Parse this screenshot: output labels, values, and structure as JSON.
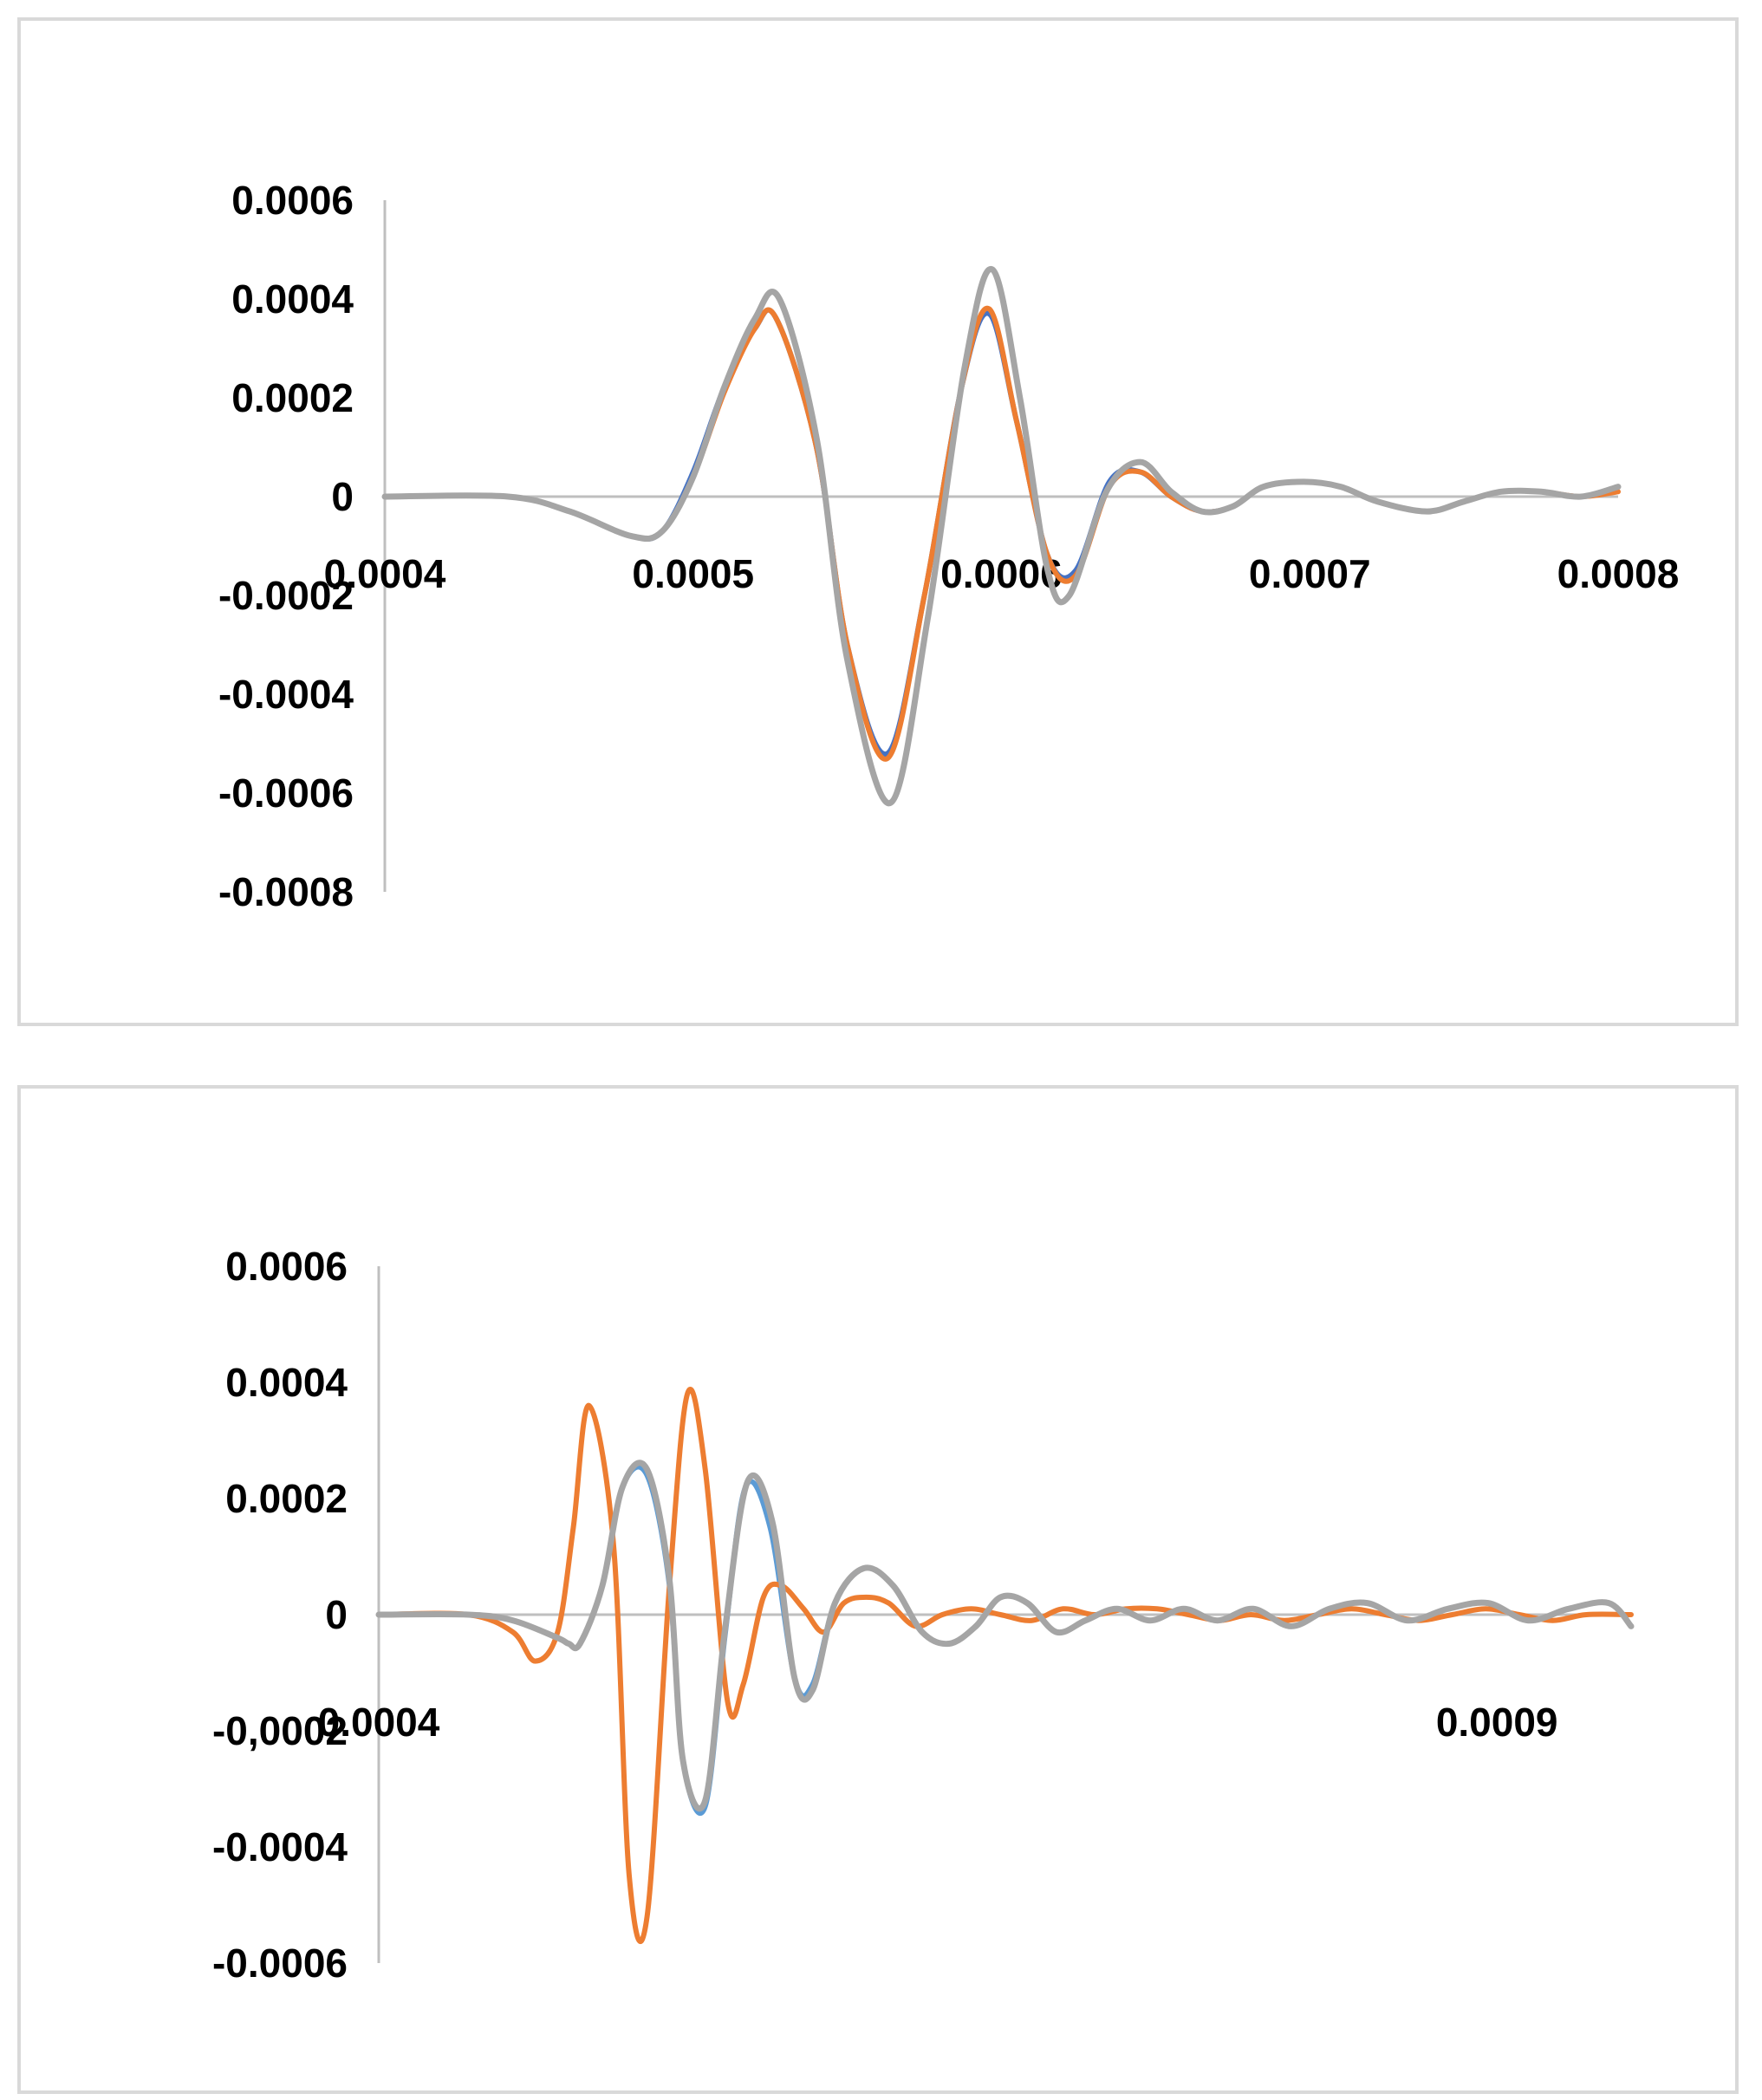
{
  "chart_data": [
    {
      "type": "line",
      "title": "",
      "xlabel": "",
      "ylabel": "",
      "xlim": [
        0.0004,
        0.0008
      ],
      "ylim": [
        -0.0008,
        0.0006
      ],
      "x_tick_values": [
        0.0004,
        0.0005,
        0.0006,
        0.0007,
        0.0008
      ],
      "x_tick_labels": [
        "0.0004",
        "0.0005",
        "0.0006",
        "0.0007",
        "0.0008"
      ],
      "y_tick_values": [
        0.0006,
        0.0004,
        0.0002,
        0,
        -0.0002,
        -0.0004,
        -0.0006,
        -0.0008
      ],
      "y_tick_labels": [
        "0.0006",
        "0.0004",
        "0.0002",
        "0",
        "-0.0002",
        "-0.0004",
        "-0.0006",
        "-0.0008"
      ],
      "grid": false,
      "legend": "none",
      "series": [
        {
          "color": "#4472c4",
          "x": [
            0.0004,
            0.00044,
            0.00046,
            0.00048,
            0.00049,
            0.0005,
            0.00051,
            0.00052,
            0.000527,
            0.00054,
            0.00055,
            0.000563,
            0.000575,
            0.000587,
            0.000596,
            0.000605,
            0.000615,
            0.000624,
            0.000635,
            0.000645,
            0.000655,
            0.000665,
            0.000675,
            0.000685,
            0.000698,
            0.00071,
            0.000722,
            0.000738,
            0.00075,
            0.000762,
            0.000775,
            0.000788,
            0.0008
          ],
          "y": [
            0,
            0,
            -3e-05,
            -8e-05,
            -7e-05,
            5e-05,
            0.00022,
            0.00034,
            0.00036,
            0.0001,
            -0.0003,
            -0.00052,
            -0.0002,
            0.00022,
            0.00037,
            0.00015,
            -0.00012,
            -0.00015,
            3e-05,
            5e-05,
            0,
            -3e-05,
            -2e-05,
            2e-05,
            3e-05,
            2e-05,
            -1e-05,
            -3e-05,
            -1e-05,
            1e-05,
            1e-05,
            0,
            2e-05
          ]
        },
        {
          "color": "#ed7d31",
          "x": [
            0.0004,
            0.00044,
            0.00046,
            0.00048,
            0.00049,
            0.0005,
            0.00051,
            0.00052,
            0.000527,
            0.00054,
            0.00055,
            0.000563,
            0.000575,
            0.000587,
            0.000596,
            0.000605,
            0.000615,
            0.000624,
            0.000635,
            0.000645,
            0.000655,
            0.000665,
            0.000675,
            0.000685,
            0.000698,
            0.00071,
            0.000722,
            0.000738,
            0.00075,
            0.000762,
            0.000775,
            0.000788,
            0.0008
          ],
          "y": [
            0,
            0,
            -3e-05,
            -8e-05,
            -7e-05,
            4e-05,
            0.00021,
            0.00034,
            0.00036,
            0.0001,
            -0.0003,
            -0.00053,
            -0.0002,
            0.00022,
            0.00038,
            0.00015,
            -0.00012,
            -0.00016,
            2e-05,
            5e-05,
            0,
            -3e-05,
            -2e-05,
            2e-05,
            3e-05,
            2e-05,
            -1e-05,
            -3e-05,
            -1e-05,
            1e-05,
            1e-05,
            0,
            1e-05
          ]
        },
        {
          "color": "#a5a5a5",
          "x": [
            0.0004,
            0.00044,
            0.00046,
            0.00048,
            0.00049,
            0.0005,
            0.00051,
            0.00052,
            0.000528,
            0.00054,
            0.00055,
            0.000564,
            0.000576,
            0.000588,
            0.000597,
            0.000606,
            0.000615,
            0.000622,
            0.000634,
            0.000645,
            0.000655,
            0.000665,
            0.000675,
            0.000685,
            0.000698,
            0.00071,
            0.000722,
            0.000738,
            0.00075,
            0.000762,
            0.000775,
            0.000788,
            0.0008
          ],
          "y": [
            0,
            0,
            -3e-05,
            -8e-05,
            -7e-05,
            4e-05,
            0.00022,
            0.00036,
            0.0004,
            0.00012,
            -0.00033,
            -0.00062,
            -0.00025,
            0.00026,
            0.00046,
            0.0002,
            -0.00015,
            -0.0002,
            1e-05,
            7e-05,
            1e-05,
            -3e-05,
            -2e-05,
            2e-05,
            3e-05,
            2e-05,
            -1e-05,
            -3e-05,
            -1e-05,
            1e-05,
            1e-05,
            0,
            2e-05
          ]
        }
      ]
    },
    {
      "type": "line",
      "title": "",
      "xlabel": "",
      "ylabel": "",
      "xlim": [
        0.0004,
        0.00096
      ],
      "ylim": [
        -0.0006,
        0.0006
      ],
      "x_tick_values": [
        0.0004,
        0.0009
      ],
      "x_tick_labels": [
        "0.0004",
        "0.0009"
      ],
      "y_tick_values": [
        0.0006,
        0.0004,
        0.0002,
        0,
        -0.0002,
        -0.0004,
        -0.0006
      ],
      "y_tick_labels": [
        "0.0006",
        "0.0004",
        "0.0002",
        "0",
        "-0,0002",
        "-0.0004",
        "-0.0006"
      ],
      "grid": false,
      "legend": "none",
      "series": [
        {
          "color": "#5b9bd5",
          "x": [
            0.0004,
            0.00044,
            0.00046,
            0.00048,
            0.000485,
            0.00049,
            0.0005,
            0.000509,
            0.00052,
            0.00053,
            0.000536,
            0.000546,
            0.000555,
            0.000564,
            0.000575,
            0.000586,
            0.000594,
            0.000604,
            0.000617,
            0.00063,
            0.000643,
            0.000655,
            0.000667,
            0.000678,
            0.00069,
            0.000703,
            0.000716,
            0.00073,
            0.000745,
            0.00076,
            0.000775,
            0.000791,
            0.000808,
            0.000825,
            0.000842,
            0.00086,
            0.000878,
            0.000896,
            0.000914,
            0.000932,
            0.00095,
            0.00096
          ],
          "y": [
            0,
            0,
            -1e-05,
            -4e-05,
            -5e-05,
            -5e-05,
            5e-05,
            0.00022,
            0.00024,
            5e-05,
            -0.00025,
            -0.00033,
            -3e-05,
            0.00022,
            0.00015,
            -0.00011,
            -0.00012,
            2e-05,
            8e-05,
            5e-05,
            -3e-05,
            -5e-05,
            -2e-05,
            3e-05,
            2e-05,
            -3e-05,
            -1e-05,
            1e-05,
            -1e-05,
            1e-05,
            -1e-05,
            1e-05,
            -2e-05,
            1e-05,
            2e-05,
            -1e-05,
            1e-05,
            2e-05,
            -1e-05,
            1e-05,
            2e-05,
            -2e-05
          ]
        },
        {
          "color": "#ed7d31",
          "x": [
            0.0004,
            0.00044,
            0.00046,
            0.00047,
            0.00048,
            0.000487,
            0.000494,
            0.000505,
            0.000512,
            0.00052,
            0.00053,
            0.000538,
            0.000546,
            0.000556,
            0.000563,
            0.000572,
            0.00058,
            0.00059,
            0.000599,
            0.000608,
            0.000618,
            0.000628,
            0.00064,
            0.000652,
            0.000665,
            0.000678,
            0.000692,
            0.000706,
            0.00072,
            0.000734,
            0.000748,
            0.000762,
            0.000776,
            0.00079,
            0.000805,
            0.00082,
            0.000835,
            0.00085,
            0.000865,
            0.00088,
            0.000895,
            0.00091,
            0.000925,
            0.00094,
            0.00096
          ],
          "y": [
            0,
            0,
            -3e-05,
            -8e-05,
            -3e-05,
            0.00015,
            0.00036,
            0.00012,
            -0.00045,
            -0.00052,
            5e-05,
            0.00038,
            0.00025,
            -0.00015,
            -0.00012,
            3e-05,
            5e-05,
            1e-05,
            -3e-05,
            2e-05,
            3e-05,
            2e-05,
            -2e-05,
            0,
            1e-05,
            0,
            -1e-05,
            1e-05,
            0,
            1e-05,
            1e-05,
            0,
            -1e-05,
            0,
            -1e-05,
            0,
            1e-05,
            0,
            -1e-05,
            0,
            1e-05,
            0,
            -1e-05,
            0,
            0
          ]
        },
        {
          "color": "#a5a5a5",
          "x": [
            0.0004,
            0.00044,
            0.00046,
            0.00048,
            0.000485,
            0.00049,
            0.0005,
            0.000509,
            0.00052,
            0.00053,
            0.000536,
            0.000546,
            0.000555,
            0.000565,
            0.000576,
            0.000586,
            0.000594,
            0.000604,
            0.000617,
            0.00063,
            0.000643,
            0.000655,
            0.000667,
            0.000678,
            0.00069,
            0.000703,
            0.000716,
            0.00073,
            0.000745,
            0.00076,
            0.000775,
            0.000791,
            0.000808,
            0.000825,
            0.000842,
            0.00086,
            0.000878,
            0.000896,
            0.000914,
            0.000932,
            0.00095,
            0.00096
          ],
          "y": [
            0,
            0,
            -1e-05,
            -4e-05,
            -5e-05,
            -5e-05,
            5e-05,
            0.00022,
            0.00025,
            6e-05,
            -0.00025,
            -0.00032,
            -2e-05,
            0.00023,
            0.00016,
            -0.00011,
            -0.00013,
            2e-05,
            8e-05,
            5e-05,
            -3e-05,
            -5e-05,
            -2e-05,
            3e-05,
            2e-05,
            -3e-05,
            -1e-05,
            1e-05,
            -1e-05,
            1e-05,
            -1e-05,
            1e-05,
            -2e-05,
            1e-05,
            2e-05,
            -1e-05,
            1e-05,
            2e-05,
            -1e-05,
            1e-05,
            2e-05,
            -2e-05
          ]
        }
      ]
    }
  ]
}
